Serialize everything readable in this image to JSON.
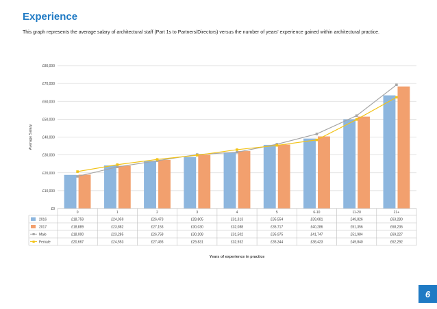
{
  "page": {
    "title": "Experience",
    "subtitle": "This graph represents the average salary of architectural staff (Part 1s to Partners/Directors) versus the number of years' experience gained within architectural practice.",
    "page_number": "6"
  },
  "colors": {
    "accent": "#1f7ac4",
    "series_2016": "#8db6de",
    "series_2017": "#f2a06e",
    "series_male": "#a6a6a6",
    "series_female": "#f2c318"
  },
  "chart_data": {
    "type": "bar",
    "categories": [
      "0",
      "1",
      "2",
      "3",
      "4",
      "5",
      "6-10",
      "11-20",
      "21+"
    ],
    "series": [
      {
        "name": "2016",
        "type": "bar",
        "color": "#8db6de",
        "values": [
          18759,
          24059,
          26473,
          28805,
          31313,
          35554,
          39081,
          49826,
          63280
        ],
        "labels": [
          "£18,759",
          "£24,059",
          "£26,473",
          "£28,805",
          "£31,313",
          "£35,554",
          "£39,081",
          "£49,826",
          "£63,280"
        ]
      },
      {
        "name": "2017",
        "type": "bar",
        "color": "#f2a06e",
        "values": [
          18889,
          23882,
          27153,
          30030,
          32088,
          35717,
          40286,
          51356,
          68236
        ],
        "labels": [
          "£18,889",
          "£23,882",
          "£27,153",
          "£30,030",
          "£32,088",
          "£35,717",
          "£40,286",
          "£51,356",
          "£68,236"
        ]
      },
      {
        "name": "Male",
        "type": "line",
        "marker": "square",
        "color": "#a6a6a6",
        "values": [
          18000,
          23285,
          26758,
          30208,
          31502,
          35975,
          41747,
          51984,
          69227
        ],
        "labels": [
          "£18,000",
          "£23,285",
          "£26,758",
          "£30,208",
          "£31,502",
          "£35,975",
          "£41,747",
          "£51,984",
          "£69,227"
        ]
      },
      {
        "name": "Female",
        "type": "line",
        "marker": "square",
        "color": "#f2c318",
        "values": [
          20667,
          24553,
          27493,
          29831,
          32932,
          35344,
          38423,
          49840,
          62292
        ],
        "labels": [
          "£20,667",
          "£24,553",
          "£27,493",
          "£29,831",
          "£32,932",
          "£35,344",
          "£38,423",
          "£49,840",
          "£62,292"
        ]
      }
    ],
    "ylim": [
      0,
      80000
    ],
    "yticks": [
      0,
      10000,
      20000,
      30000,
      40000,
      50000,
      60000,
      70000,
      80000
    ],
    "ytick_labels": [
      "£0",
      "£10,000",
      "£20,000",
      "£30,000",
      "£40,000",
      "£50,000",
      "£60,000",
      "£70,000",
      "£80,000"
    ],
    "ylabel": "Average Salary",
    "xlabel": "Years of experience in practice",
    "grid": true,
    "legend": "data-table"
  }
}
